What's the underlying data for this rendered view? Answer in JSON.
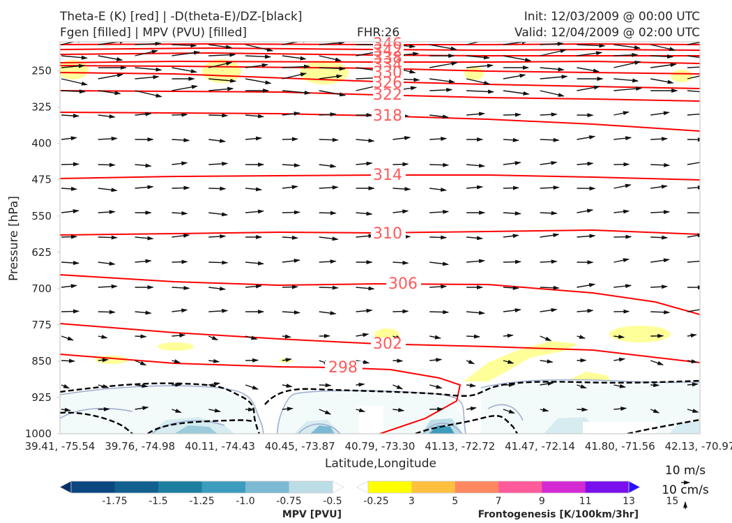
{
  "header": {
    "title_line1_left": "Theta-E (K) [red] | -D(theta-E)/DZ-[black]",
    "title_line2_left": "Fgen [filled] | MPV (PVU) [filled]",
    "fhr": "FHR:26",
    "init": "Init: 12/03/2009 @ 00:00 UTC",
    "valid": "Valid: 12/04/2009 @ 02:00 UTC"
  },
  "chart_data": {
    "type": "cross-section",
    "xlabel": "Latitude,Longitude",
    "ylabel": "Pressure [hPa]",
    "x_ticks": [
      "39.41, -75.54",
      "39.76, -74.98",
      "40.11, -74.43",
      "40.45, -73.87",
      "40.79, -73.30",
      "41.13, -72.72",
      "41.47, -72.14",
      "41.80, -71.56",
      "42.13, -70.97"
    ],
    "y_ticks": [
      250,
      325,
      400,
      475,
      550,
      625,
      700,
      775,
      850,
      925,
      1000
    ],
    "ylim": [
      1000,
      190
    ],
    "y_inverted": true,
    "grid": false,
    "theta_e_contours": [
      {
        "level": 346,
        "label": "346",
        "color": "#ff0000"
      },
      {
        "level": 342,
        "label": "342",
        "color": "#ff0000"
      },
      {
        "level": 338,
        "label": "338",
        "color": "#ff0000"
      },
      {
        "level": 334,
        "label": "334",
        "color": "#ff0000"
      },
      {
        "level": 330,
        "label": "330",
        "color": "#ff0000"
      },
      {
        "level": 326,
        "label": "326",
        "color": "#ff0000"
      },
      {
        "level": 322,
        "label": "322",
        "color": "#ff0000"
      },
      {
        "level": 318,
        "label": "318",
        "color": "#ff0000"
      },
      {
        "level": 314,
        "label": "314",
        "color": "#ff0000"
      },
      {
        "level": 310,
        "label": "310",
        "color": "#ff0000"
      },
      {
        "level": 306,
        "label": "306",
        "color": "#ff0000"
      },
      {
        "level": 302,
        "label": "302",
        "color": "#ff0000"
      },
      {
        "level": 298,
        "label": "298",
        "color": "#ff0000"
      }
    ],
    "mpv_colorbar": {
      "label": "MPV [PVU]",
      "ticks": [
        "-1.75",
        "-1.5",
        "-1.25",
        "-1.0",
        "-0.75",
        "-0.5",
        "-0.25"
      ],
      "colors": [
        "#08306b",
        "#0b4781",
        "#12608f",
        "#1d7fa0",
        "#3c9cbd",
        "#7cbad3",
        "#bcdde6",
        "#ffffff"
      ]
    },
    "fgen_colorbar": {
      "label": "Frontogenesis [K/100km/3hr]",
      "ticks": [
        "3",
        "5",
        "7",
        "9",
        "11",
        "13",
        "15"
      ],
      "colors": [
        "#ffffff",
        "#ffff00",
        "#ffc040",
        "#ff8860",
        "#ff5a9a",
        "#d42ad4",
        "#7a10ee",
        "#2a10ff"
      ]
    },
    "vector_key": {
      "label1": "10 m/s",
      "label2": "10 cm/s"
    }
  }
}
